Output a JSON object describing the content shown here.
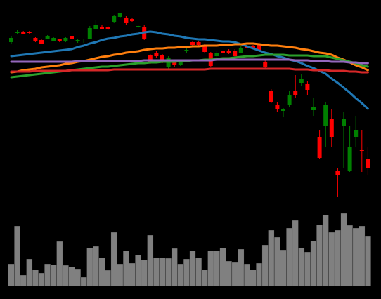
{
  "chart_data": {
    "type": "candlestick",
    "up_color": "#008000",
    "down_color": "#ff0000",
    "ylim": [
      0,
      270
    ],
    "open": [
      225,
      238,
      240,
      239,
      231,
      228,
      230,
      227,
      229,
      226,
      233,
      226,
      226,
      230,
      244,
      247,
      247,
      253,
      261,
      260,
      258,
      246,
      247,
      206,
      210,
      207,
      189,
      197,
      193,
      212,
      225,
      225,
      220,
      209,
      205,
      212,
      213,
      213,
      210,
      219,
      219,
      223,
      197,
      155,
      135,
      127,
      135,
      155,
      167,
      165,
      128,
      90,
      105,
      115,
      42,
      105,
      42,
      90,
      72,
      59
    ],
    "high": [
      233,
      242,
      241,
      241,
      232,
      229,
      235,
      232,
      230,
      232,
      234,
      229,
      230,
      248,
      256,
      250,
      248,
      264,
      267,
      262,
      260,
      250,
      250,
      208,
      213,
      208,
      205,
      199,
      199,
      216,
      227,
      226,
      222,
      211,
      212,
      213,
      215,
      215,
      219,
      220,
      221,
      225,
      199,
      158,
      140,
      131,
      155,
      178,
      180,
      170,
      145,
      100,
      140,
      130,
      45,
      125,
      105,
      120,
      100,
      75
    ],
    "low": [
      223,
      236,
      236,
      237,
      225,
      222,
      229,
      226,
      225,
      225,
      229,
      224,
      224,
      229,
      243,
      243,
      242,
      252,
      260,
      250,
      254,
      245,
      228,
      194,
      203,
      195,
      187,
      190,
      191,
      210,
      220,
      219,
      209,
      189,
      203,
      209,
      208,
      204,
      209,
      216,
      216,
      211,
      188,
      138,
      125,
      118,
      133,
      145,
      162,
      150,
      120,
      58,
      75,
      75,
      5,
      45,
      40,
      75,
      40,
      35
    ],
    "close": [
      231,
      240,
      237,
      238,
      226,
      223,
      234,
      231,
      226,
      231,
      230,
      228,
      227,
      245,
      249,
      244,
      243,
      262,
      266,
      252,
      255,
      248,
      230,
      197,
      205,
      197,
      203,
      192,
      197,
      214,
      221,
      221,
      211,
      191,
      210,
      210,
      210,
      205,
      217,
      217,
      217,
      213,
      189,
      140,
      130,
      130,
      150,
      149,
      173,
      157,
      133,
      60,
      135,
      90,
      35,
      115,
      75,
      100,
      70,
      45
    ],
    "series": [
      {
        "color": "#1f77b4",
        "values": [
          205,
          206,
          207,
          208,
          209,
          210,
          211,
          212,
          213,
          214,
          215,
          218,
          220,
          223,
          225,
          228,
          230,
          231,
          233,
          234,
          236,
          237,
          239,
          240,
          239,
          237,
          236,
          234,
          233,
          231,
          230,
          229,
          229,
          228,
          227,
          226,
          226,
          225,
          222,
          219,
          216,
          213,
          210,
          208,
          205,
          203,
          200,
          198,
          195,
          191,
          188,
          184,
          180,
          173,
          167,
          160,
          153,
          145,
          138,
          130
        ]
      },
      {
        "color": "#ff7f0e",
        "values": [
          182,
          183,
          185,
          186,
          187,
          189,
          190,
          191,
          192,
          194,
          195,
          197,
          198,
          200,
          202,
          204,
          205,
          207,
          208,
          210,
          211,
          212,
          214,
          215,
          216,
          216,
          217,
          217,
          218,
          218,
          219,
          219,
          220,
          220,
          220,
          221,
          221,
          222,
          222,
          223,
          223,
          222,
          221,
          220,
          220,
          219,
          218,
          217,
          215,
          214,
          212,
          210,
          209,
          207,
          203,
          200,
          196,
          192,
          189,
          185
        ]
      },
      {
        "color": "#2ca02c",
        "values": [
          175,
          176,
          177,
          178,
          179,
          180,
          181,
          182,
          183,
          184,
          185,
          186,
          187,
          188,
          189,
          190,
          190,
          191,
          192,
          193,
          194,
          195,
          195,
          196,
          196,
          197,
          197,
          197,
          198,
          198,
          199,
          199,
          200,
          200,
          201,
          202,
          202,
          203,
          204,
          205,
          205,
          206,
          207,
          207,
          207,
          207,
          206,
          206,
          206,
          206,
          205,
          205,
          205,
          203,
          201,
          199,
          197,
          195,
          192,
          190
        ]
      },
      {
        "color": "#9467bd",
        "values": [
          197,
          197,
          197,
          197,
          197,
          197,
          197,
          197,
          197,
          197,
          197,
          198,
          198,
          198,
          198,
          198,
          198,
          198,
          198,
          198,
          198,
          198,
          199,
          199,
          199,
          199,
          199,
          199,
          199,
          199,
          199,
          199,
          199,
          199,
          200,
          200,
          200,
          200,
          200,
          200,
          200,
          200,
          200,
          200,
          200,
          200,
          200,
          199,
          199,
          199,
          198,
          198,
          198,
          197,
          197,
          197,
          196,
          196,
          195,
          195
        ]
      },
      {
        "color": "#d62728",
        "values": [
          183,
          183,
          183,
          183,
          184,
          184,
          184,
          184,
          184,
          184,
          185,
          185,
          185,
          185,
          185,
          185,
          185,
          186,
          186,
          186,
          186,
          186,
          186,
          186,
          186,
          186,
          186,
          186,
          186,
          186,
          186,
          186,
          186,
          187,
          187,
          187,
          187,
          187,
          187,
          187,
          187,
          187,
          187,
          187,
          187,
          187,
          187,
          186,
          186,
          186,
          185,
          185,
          185,
          184,
          184,
          184,
          183,
          183,
          182,
          182
        ]
      }
    ],
    "volume": {
      "color": "#808080",
      "ylim": [
        0,
        110
      ],
      "values": [
        32,
        86,
        16,
        39,
        24,
        19,
        32,
        31,
        64,
        30,
        28,
        25,
        13,
        55,
        57,
        41,
        23,
        77,
        32,
        51,
        33,
        45,
        38,
        73,
        41,
        41,
        40,
        54,
        32,
        39,
        51,
        41,
        24,
        51,
        51,
        55,
        36,
        35,
        53,
        32,
        24,
        33,
        59,
        80,
        70,
        52,
        83,
        94,
        55,
        49,
        65,
        88,
        102,
        77,
        80,
        104,
        87,
        83,
        86,
        72
      ]
    }
  }
}
